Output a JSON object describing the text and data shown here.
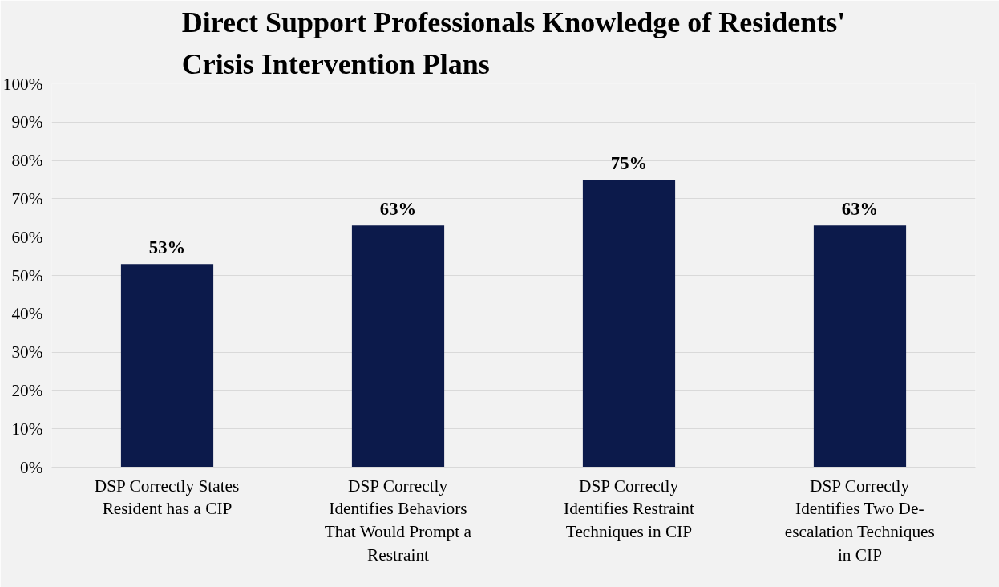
{
  "chart_data": {
    "type": "bar",
    "title": "Direct Support Professionals Knowledge of Residents' Crisis Intervention Plans",
    "categories": [
      "DSP Correctly States Resident has a CIP",
      "DSP Correctly Identifies Behaviors That Would Prompt a Restraint",
      "DSP Correctly Identifies Restraint Techniques in CIP",
      "DSP Correctly Identifies Two De-escalation Techniques in CIP"
    ],
    "values": [
      53,
      63,
      75,
      63
    ],
    "value_labels": [
      "53%",
      "63%",
      "75%",
      "63%"
    ],
    "color": "#0c1a4b",
    "ylim": [
      0,
      100
    ],
    "yticks": [
      {
        "value": 0,
        "label": "0%"
      },
      {
        "value": 10,
        "label": "10%"
      },
      {
        "value": 20,
        "label": "20%"
      },
      {
        "value": 30,
        "label": "30%"
      },
      {
        "value": 40,
        "label": "40%"
      },
      {
        "value": 50,
        "label": "50%"
      },
      {
        "value": 60,
        "label": "60%"
      },
      {
        "value": 70,
        "label": "70%"
      },
      {
        "value": 80,
        "label": "80%"
      },
      {
        "value": 90,
        "label": "90%"
      },
      {
        "value": 100,
        "label": "100%"
      }
    ],
    "grid": "y"
  }
}
